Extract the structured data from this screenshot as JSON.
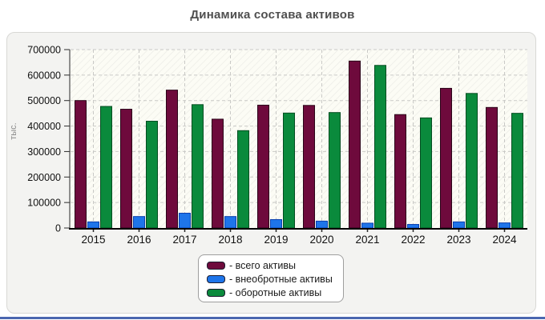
{
  "page": {
    "title": "Динамика состава активов"
  },
  "chart_data": {
    "type": "bar",
    "title": "Динамика состава активов",
    "ylabel": "тыс.",
    "xlabel": "",
    "categories": [
      "2015",
      "2016",
      "2017",
      "2018",
      "2019",
      "2020",
      "2021",
      "2022",
      "2023",
      "2024"
    ],
    "series": [
      {
        "name": "- всего активы",
        "color": "#6e0a3c",
        "stroke": "#2a0418",
        "values": [
          500000,
          466000,
          541000,
          427000,
          482000,
          481000,
          655000,
          445000,
          548000,
          473000
        ]
      },
      {
        "name": "- внеобротные активы",
        "color": "#1e75ea",
        "stroke": "#0a3fae",
        "values": [
          24000,
          45000,
          58000,
          45000,
          33000,
          27000,
          19000,
          14000,
          24000,
          20000
        ]
      },
      {
        "name": "- оборотные активы",
        "color": "#0a8a3c",
        "stroke": "#034d20",
        "values": [
          477000,
          419000,
          484000,
          382000,
          451000,
          453000,
          638000,
          432000,
          528000,
          450000
        ]
      }
    ],
    "ylim": [
      0,
      700000
    ],
    "ytick_step": 100000,
    "ytick_labels": [
      "0",
      "100000",
      "200000",
      "300000",
      "400000",
      "500000",
      "600000",
      "700000"
    ],
    "grid": "dashed",
    "legend_position": "bottom-center"
  },
  "colors": {
    "plot_bg": "#fcfcf5",
    "hatch": "#ececE6",
    "grid": "#c9c9c6",
    "axis": "#2b2b2b",
    "tick_text": "#111111",
    "bottom_line": "#4a66b0"
  }
}
